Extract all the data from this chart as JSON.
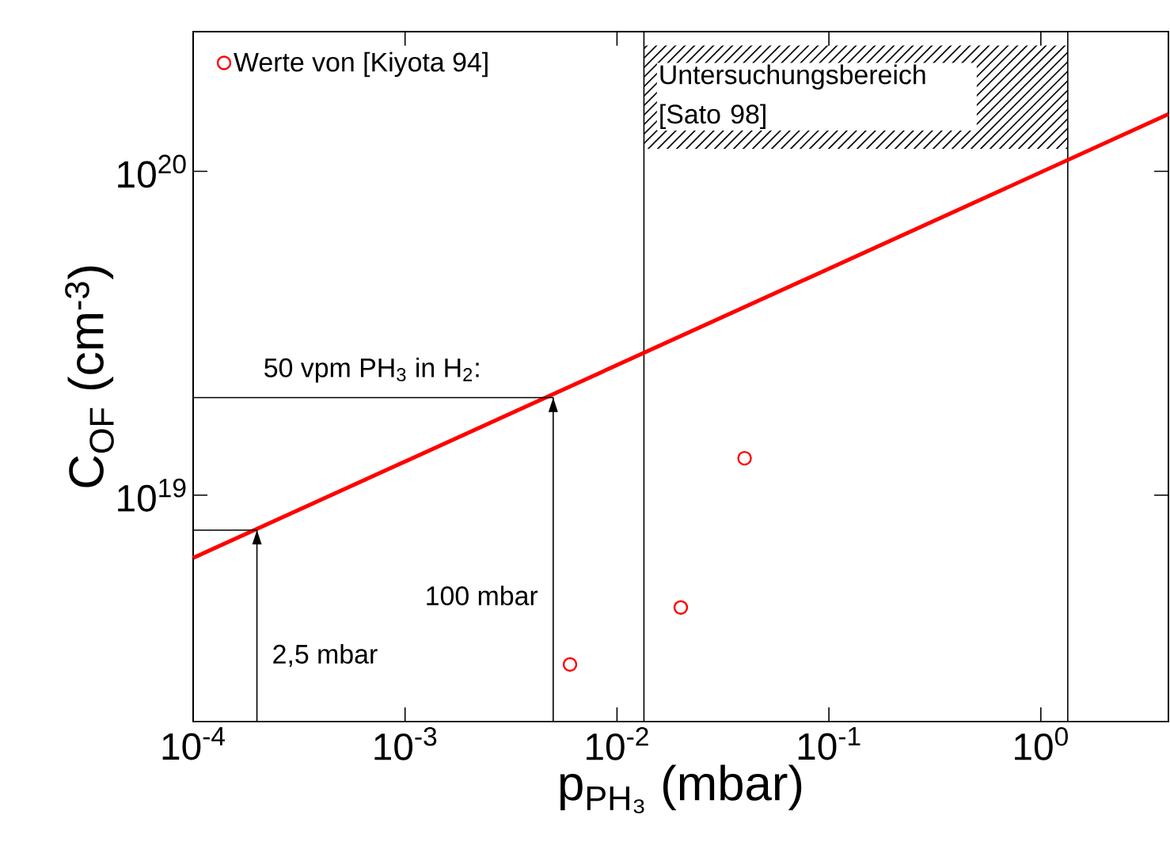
{
  "chart_data": {
    "type": "line",
    "xlabel": "p$_{PH₃}$ (mbar)",
    "ylabel": "C$_{OF}$ (cm$^{-3}$)",
    "log": "xy",
    "xlim": [
      0.0001,
      4
    ],
    "ylim": [
      2e+18,
      2.7e+20
    ],
    "xticks": [
      {
        "value": 0.0001,
        "label": "10$^{-4}$"
      },
      {
        "value": 0.001,
        "label": "10$^{-3}$"
      },
      {
        "value": 0.01,
        "label": "10$^{-2}$"
      },
      {
        "value": 0.1,
        "label": "10$^{-1}$"
      },
      {
        "value": 1,
        "label": "10$^{0}$"
      }
    ],
    "yticks": [
      {
        "value": 1e+19,
        "label": "10$^{19}$"
      },
      {
        "value": 1e+20,
        "label": "10$^{20}$"
      }
    ],
    "grid": false,
    "legend": "top left",
    "series": [
      {
        "color": "#ff0000",
        "x": [
          0.0001,
          4
        ],
        "values": [
          6.4e+18,
          1.5e+20
        ]
      },
      {
        "color": "#000000",
        "x": [
          0.0001,
          0.0002,
          0.0002
        ],
        "values": [
          7.8e+18,
          7.8e+18,
          2e+18
        ]
      },
      {
        "color": "#000000",
        "x": [
          0.0001,
          0.005,
          0.005
        ],
        "values": [
          2e+19,
          2e+19,
          2e+18
        ]
      },
      {
        "type": "scatter",
        "name": "Werte von [Kiyota 94]",
        "color": "#ff0000",
        "marker": "circle",
        "x": [
          0.006,
          0.02,
          0.04
        ],
        "values": [
          3e+18,
          4.5e+18,
          1.3e+19
        ]
      }
    ],
    "ref_lines": [
      {
        "axis": "x",
        "value": 0.0134
      },
      {
        "axis": "x",
        "value": 1.34
      }
    ],
    "annotations": [
      "Untersuchungsbereich [Sato 98]",
      {
        "text": "2,5 mbar",
        "x": 0.0002,
        "y": 3.2e+18
      },
      {
        "text": "100 mbar",
        "x": 0.005,
        "y": 4.9e+18
      },
      {
        "text": "50 vpm PH$_{3}$ in H$_{2}$:",
        "x": 0.0007,
        "y": 2e+19
      }
    ]
  }
}
